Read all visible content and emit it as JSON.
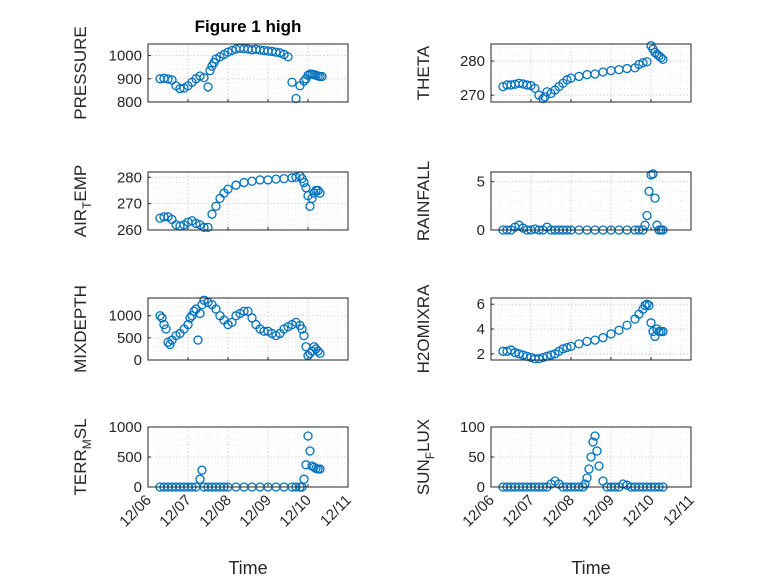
{
  "figure_title": "Figure 1 high",
  "colors": {
    "marker": "#0072BD",
    "axis": "#262626",
    "grid": "#c8c8c8"
  },
  "x_ticks": [
    "12/06",
    "12/07",
    "12/08",
    "12/09",
    "12/10",
    "12/11"
  ],
  "x_label": "Time",
  "chart_data": [
    {
      "type": "scatter",
      "ylabel": "PRESSURE",
      "title": "Figure 1 high",
      "ylim": [
        800,
        1050
      ],
      "yticks": [
        800,
        900,
        1000
      ],
      "grid": true,
      "x": [
        0.3,
        0.4,
        0.5,
        0.6,
        0.7,
        0.8,
        0.9,
        1.0,
        1.1,
        1.2,
        1.3,
        1.4,
        1.5,
        1.55,
        1.6,
        1.65,
        1.7,
        1.8,
        1.9,
        2.0,
        2.1,
        2.2,
        2.3,
        2.4,
        2.5,
        2.6,
        2.7,
        2.8,
        2.9,
        3.0,
        3.1,
        3.2,
        3.3,
        3.4,
        3.5,
        3.6,
        3.7,
        3.8,
        3.9,
        3.95,
        4.0,
        4.05,
        4.1,
        4.15,
        4.2,
        4.25,
        4.3,
        4.35
      ],
      "y": [
        900,
        902,
        899,
        895,
        870,
        858,
        860,
        870,
        885,
        900,
        912,
        905,
        865,
        935,
        955,
        970,
        985,
        995,
        1005,
        1015,
        1022,
        1028,
        1032,
        1030,
        1028,
        1025,
        1027,
        1024,
        1022,
        1020,
        1018,
        1015,
        1012,
        1005,
        995,
        885,
        815,
        870,
        890,
        900,
        915,
        920,
        920,
        918,
        915,
        912,
        910,
        910
      ]
    },
    {
      "type": "scatter",
      "ylabel": "THETA",
      "ylim": [
        268,
        285
      ],
      "yticks": [
        270,
        280
      ],
      "grid": true,
      "x": [
        0.3,
        0.4,
        0.5,
        0.6,
        0.7,
        0.8,
        0.9,
        1.0,
        1.1,
        1.2,
        1.3,
        1.35,
        1.4,
        1.5,
        1.6,
        1.7,
        1.8,
        1.9,
        2.0,
        2.2,
        2.4,
        2.6,
        2.8,
        3.0,
        3.2,
        3.4,
        3.6,
        3.7,
        3.8,
        3.9,
        4.0,
        4.05,
        4.1,
        4.15,
        4.2,
        4.25,
        4.3
      ],
      "y": [
        272.5,
        273,
        273,
        273.2,
        273.5,
        273.3,
        273,
        272.8,
        272,
        270,
        269,
        269.5,
        271,
        270.5,
        271.5,
        272.5,
        273.5,
        274.5,
        275,
        275.5,
        276,
        276.2,
        276.8,
        277.2,
        277.5,
        277.8,
        278,
        279,
        279.5,
        279.8,
        284.5,
        283.5,
        282.5,
        282,
        281.5,
        281,
        280.5
      ]
    },
    {
      "type": "scatter",
      "ylabel": "AIR_TEMP",
      "ylim": [
        260,
        282
      ],
      "yticks": [
        260,
        270,
        280
      ],
      "grid": true,
      "x": [
        0.3,
        0.4,
        0.5,
        0.6,
        0.7,
        0.8,
        0.9,
        1.0,
        1.1,
        1.2,
        1.3,
        1.4,
        1.5,
        1.6,
        1.7,
        1.8,
        1.9,
        2.0,
        2.2,
        2.4,
        2.6,
        2.8,
        3.0,
        3.2,
        3.4,
        3.6,
        3.7,
        3.8,
        3.85,
        3.9,
        3.95,
        4.0,
        4.05,
        4.1,
        4.15,
        4.2,
        4.25,
        4.3
      ],
      "y": [
        264.5,
        265,
        265,
        264,
        262,
        261.5,
        262,
        263,
        263.5,
        262.5,
        262,
        261,
        261,
        266,
        269,
        272,
        274,
        275.5,
        277,
        278,
        278.5,
        279,
        279,
        279.3,
        279.5,
        279.8,
        280,
        280.5,
        279.5,
        278,
        276,
        273,
        269,
        272,
        274,
        275,
        275,
        274
      ]
    },
    {
      "type": "scatter",
      "ylabel": "RAINFALL",
      "ylim": [
        0,
        6
      ],
      "yticks": [
        0,
        5
      ],
      "grid": true,
      "x": [
        0.3,
        0.4,
        0.5,
        0.6,
        0.7,
        0.8,
        0.9,
        1.0,
        1.1,
        1.2,
        1.3,
        1.4,
        1.5,
        1.6,
        1.7,
        1.8,
        1.9,
        2.0,
        2.2,
        2.4,
        2.6,
        2.8,
        3.0,
        3.2,
        3.4,
        3.6,
        3.7,
        3.8,
        3.85,
        3.9,
        3.95,
        4.0,
        4.05,
        4.1,
        4.15,
        4.2,
        4.25,
        4.3
      ],
      "y": [
        0,
        0,
        0,
        0.3,
        0.5,
        0.2,
        0,
        0,
        0.1,
        0,
        0,
        0.3,
        0,
        0,
        0,
        0,
        0,
        0,
        0,
        0,
        0,
        0,
        0,
        0,
        0,
        0,
        0,
        0,
        0.5,
        1.5,
        4,
        5.7,
        5.8,
        3.3,
        0.5,
        0,
        0,
        0
      ]
    },
    {
      "type": "scatter",
      "ylabel": "MIXDEPTH",
      "ylim": [
        0,
        1400
      ],
      "yticks": [
        0,
        500,
        1000
      ],
      "grid": true,
      "x": [
        0.3,
        0.35,
        0.4,
        0.45,
        0.5,
        0.55,
        0.6,
        0.7,
        0.8,
        0.9,
        1.0,
        1.05,
        1.1,
        1.15,
        1.2,
        1.25,
        1.3,
        1.35,
        1.4,
        1.5,
        1.6,
        1.7,
        1.8,
        1.9,
        2.0,
        2.1,
        2.2,
        2.3,
        2.4,
        2.5,
        2.6,
        2.7,
        2.8,
        2.9,
        3.0,
        3.1,
        3.2,
        3.3,
        3.4,
        3.5,
        3.6,
        3.7,
        3.8,
        3.85,
        3.9,
        3.95,
        4.0,
        4.05,
        4.1,
        4.15,
        4.2,
        4.25,
        4.3
      ],
      "y": [
        1000,
        950,
        800,
        700,
        400,
        350,
        450,
        550,
        600,
        700,
        800,
        950,
        1000,
        1100,
        1150,
        450,
        1050,
        1250,
        1350,
        1300,
        1250,
        1150,
        1000,
        900,
        800,
        850,
        1000,
        1050,
        1100,
        1100,
        950,
        800,
        700,
        650,
        650,
        600,
        550,
        600,
        700,
        750,
        800,
        850,
        780,
        700,
        550,
        300,
        100,
        150,
        200,
        300,
        250,
        200,
        150
      ]
    },
    {
      "type": "scatter",
      "ylabel": "H2OMIXRA",
      "ylim": [
        1.5,
        6.5
      ],
      "yticks": [
        2,
        4,
        6
      ],
      "grid": true,
      "x": [
        0.3,
        0.4,
        0.5,
        0.6,
        0.7,
        0.8,
        0.9,
        1.0,
        1.1,
        1.2,
        1.3,
        1.4,
        1.5,
        1.6,
        1.7,
        1.8,
        1.9,
        2.0,
        2.2,
        2.4,
        2.6,
        2.8,
        3.0,
        3.2,
        3.4,
        3.6,
        3.7,
        3.8,
        3.85,
        3.9,
        3.95,
        4.0,
        4.05,
        4.1,
        4.15,
        4.2,
        4.25,
        4.3
      ],
      "y": [
        2.2,
        2.2,
        2.3,
        2.1,
        2,
        1.9,
        1.8,
        1.7,
        1.6,
        1.6,
        1.7,
        1.8,
        1.9,
        2,
        2.2,
        2.4,
        2.5,
        2.6,
        2.8,
        3,
        3.1,
        3.3,
        3.6,
        3.9,
        4.3,
        4.8,
        5.2,
        5.6,
        5.9,
        6,
        5.9,
        4.5,
        3.8,
        3.4,
        4,
        3.8,
        3.8,
        3.8
      ]
    },
    {
      "type": "scatter",
      "ylabel": "TERR_MSL",
      "ylim": [
        0,
        1000
      ],
      "yticks": [
        0,
        500,
        1000
      ],
      "grid": true,
      "x": [
        0.3,
        0.4,
        0.5,
        0.6,
        0.7,
        0.8,
        0.9,
        1.0,
        1.1,
        1.2,
        1.3,
        1.35,
        1.4,
        1.5,
        1.6,
        1.7,
        1.8,
        1.9,
        2.0,
        2.2,
        2.4,
        2.6,
        2.8,
        3.0,
        3.2,
        3.4,
        3.6,
        3.7,
        3.8,
        3.85,
        3.9,
        3.95,
        4.0,
        4.05,
        4.1,
        4.15,
        4.2,
        4.25,
        4.3
      ],
      "y": [
        0,
        0,
        0,
        0,
        0,
        0,
        0,
        0,
        0,
        0,
        130,
        280,
        0,
        0,
        0,
        0,
        0,
        0,
        0,
        0,
        0,
        0,
        0,
        0,
        0,
        0,
        0,
        0,
        0,
        0,
        130,
        370,
        850,
        600,
        350,
        330,
        310,
        300,
        300
      ]
    },
    {
      "type": "scatter",
      "ylabel": "SUN_FLUX",
      "ylim": [
        0,
        100
      ],
      "yticks": [
        0,
        50,
        100
      ],
      "grid": true,
      "x": [
        0.3,
        0.4,
        0.5,
        0.6,
        0.7,
        0.8,
        0.9,
        1.0,
        1.1,
        1.2,
        1.3,
        1.4,
        1.5,
        1.6,
        1.7,
        1.8,
        1.9,
        2.0,
        2.1,
        2.2,
        2.3,
        2.35,
        2.4,
        2.45,
        2.5,
        2.55,
        2.6,
        2.65,
        2.7,
        2.8,
        2.9,
        3.0,
        3.1,
        3.2,
        3.3,
        3.4,
        3.5,
        3.6,
        3.7,
        3.8,
        3.9,
        4.0,
        4.1,
        4.2,
        4.3
      ],
      "y": [
        0,
        0,
        0,
        0,
        0,
        0,
        0,
        0,
        0,
        0,
        0,
        0,
        5,
        10,
        5,
        0,
        0,
        0,
        0,
        0,
        0,
        5,
        15,
        30,
        50,
        75,
        85,
        60,
        35,
        10,
        0,
        0,
        0,
        0,
        5,
        3,
        0,
        0,
        0,
        0,
        0,
        0,
        0,
        0,
        0
      ]
    }
  ]
}
